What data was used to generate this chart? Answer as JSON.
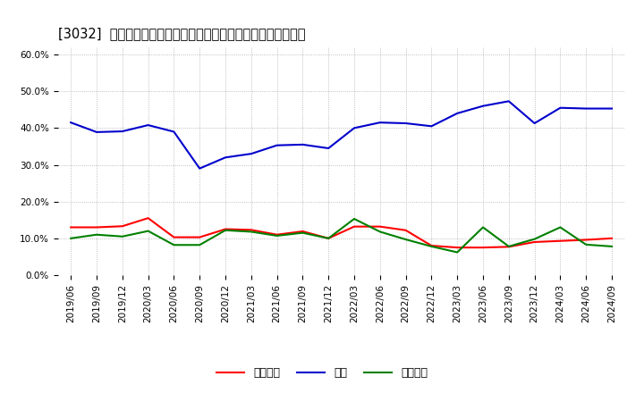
{
  "title": "[3032]  売上債権、在庫、買入債務の総資産に対する比率の推移",
  "x_labels": [
    "2019/06",
    "2019/09",
    "2019/12",
    "2020/03",
    "2020/06",
    "2020/09",
    "2020/12",
    "2021/03",
    "2021/06",
    "2021/09",
    "2021/12",
    "2022/03",
    "2022/06",
    "2022/09",
    "2022/12",
    "2023/03",
    "2023/06",
    "2023/09",
    "2023/12",
    "2024/03",
    "2024/06",
    "2024/09"
  ],
  "uri": [
    0.13,
    0.13,
    0.133,
    0.155,
    0.103,
    0.103,
    0.125,
    0.123,
    0.11,
    0.119,
    0.1,
    0.132,
    0.132,
    0.122,
    0.08,
    0.075,
    0.075,
    0.077,
    0.09,
    0.093,
    0.096,
    0.1
  ],
  "zaiko": [
    0.415,
    0.389,
    0.391,
    0.408,
    0.39,
    0.29,
    0.32,
    0.33,
    0.353,
    0.355,
    0.345,
    0.4,
    0.415,
    0.413,
    0.405,
    0.44,
    0.46,
    0.473,
    0.413,
    0.455,
    0.453,
    0.453
  ],
  "kaiire": [
    0.1,
    0.11,
    0.105,
    0.12,
    0.082,
    0.082,
    0.122,
    0.118,
    0.107,
    0.115,
    0.1,
    0.153,
    0.118,
    0.097,
    0.078,
    0.062,
    0.13,
    0.078,
    0.098,
    0.13,
    0.083,
    0.078
  ],
  "uri_color": "#ff0000",
  "zaiko_color": "#0000cc",
  "kaiire_color": "#008000",
  "uri_label": "売上債権",
  "zaiko_label": "在庫",
  "kaiire_label": "買入債務",
  "ylim": [
    0.0,
    0.62
  ],
  "yticks": [
    0.0,
    0.1,
    0.2,
    0.3,
    0.4,
    0.5,
    0.6
  ],
  "ytick_labels": [
    "0.0%",
    "10.0%",
    "20.0%",
    "30.0%",
    "40.0%",
    "50.0%",
    "60.0%"
  ],
  "background_color": "#ffffff",
  "grid_color": "#999999",
  "title_fontsize": 10.5,
  "tick_fontsize": 7.5,
  "legend_fontsize": 9,
  "linewidth": 1.5
}
